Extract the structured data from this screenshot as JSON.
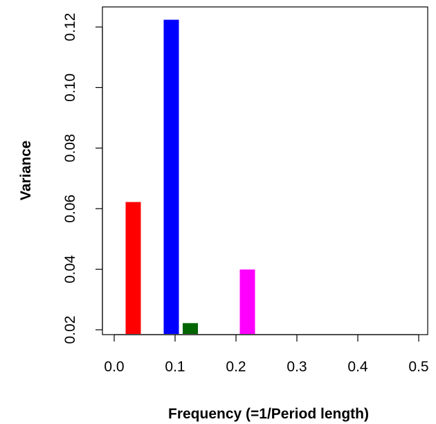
{
  "chart_data": {
    "type": "bar",
    "title": "",
    "xlabel": "Frequency (=1/Period length)",
    "ylabel": "Variance",
    "x_ticks": [
      "0.0",
      "0.1",
      "0.2",
      "0.3",
      "0.4",
      "0.5"
    ],
    "y_ticks": [
      "0.02",
      "0.04",
      "0.06",
      "0.08",
      "0.10",
      "0.12"
    ],
    "xlim": [
      0.0,
      0.5
    ],
    "ylim": [
      0.02,
      0.12
    ],
    "bars": [
      {
        "x": 0.0312,
        "value": 0.0622,
        "color": "#ff0000"
      },
      {
        "x": 0.0938,
        "value": 0.1224,
        "color": "#0000ff"
      },
      {
        "x": 0.125,
        "value": 0.0222,
        "color": "#006400"
      },
      {
        "x": 0.2188,
        "value": 0.0399,
        "color": "#ff00ff"
      }
    ],
    "bar_width": 0.025,
    "grid": false,
    "legend": "none"
  }
}
